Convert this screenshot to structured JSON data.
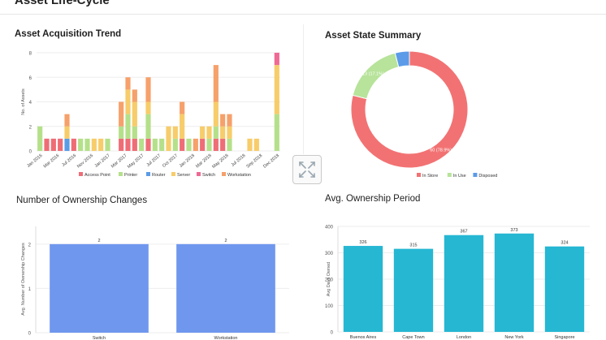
{
  "page": {
    "title": "Asset Life-Cycle"
  },
  "colors": {
    "access_point": "#ef6d76",
    "printer": "#b5e08a",
    "router": "#5b9ce6",
    "server": "#f7cc6a",
    "switch": "#ee6a95",
    "workstation": "#f6a06b",
    "in_store": "#f27273",
    "in_use": "#b7e39a",
    "disposed": "#5b9be8",
    "ownership_bar": "#6f97ee",
    "period_bar": "#26b7d3"
  },
  "widgets": {
    "acquisition": {
      "title": "Asset Acquisition Trend"
    },
    "state": {
      "title": "Asset State Summary"
    },
    "ownership_changes": {
      "title": "Number of Ownership Changes"
    },
    "ownership_period": {
      "title": "Avg. Ownership Period"
    }
  },
  "expand_icon": "expand-arrows-icon",
  "chart_data": [
    {
      "id": "acquisition",
      "type": "bar",
      "stacked": true,
      "title": "Asset Acquisition Trend",
      "ylabel": "No. of Assets",
      "ylim": [
        0,
        8
      ],
      "yticks": [
        0,
        2,
        4,
        6,
        8
      ],
      "x_tick_labels": [
        "Jan 2016",
        "Mar 2016",
        "Jul 2016",
        "Nov 2016",
        "Jan 2017",
        "Mar 2017",
        "May 2017",
        "Jul 2017",
        "Oct 2017",
        "Jan 2018",
        "Mar 2018",
        "May 2018",
        "Jul 2018",
        "Sep 2018",
        "Dec 2018"
      ],
      "categories": [
        "Jan 2016",
        "Feb 2016",
        "Mar 2016",
        "Apr 2016",
        "May 2016",
        "Jun 2016",
        "Jul 2016",
        "Aug 2016",
        "Sep 2016",
        "Oct 2016",
        "Nov 2016",
        "Dec 2016",
        "Jan 2017",
        "Feb 2017",
        "Mar 2017",
        "Apr 2017",
        "May 2017",
        "Jun 2017",
        "Jul 2017",
        "Aug 2017",
        "Sep 2017",
        "Oct 2017",
        "Nov 2017",
        "Dec 2017",
        "Jan 2018",
        "Feb 2018",
        "Mar 2018",
        "Apr 2018",
        "May 2018",
        "Jun 2018",
        "Jul 2018",
        "Aug 2018",
        "Sep 2018",
        "Oct 2018",
        "Nov 2018",
        "Dec 2018"
      ],
      "legend_position": "bottom",
      "series": [
        {
          "name": "Access Point",
          "color_key": "access_point",
          "values": [
            0,
            1,
            1,
            1,
            0,
            1,
            0,
            0,
            0,
            0,
            0,
            0,
            1,
            1,
            1,
            0,
            1,
            0,
            0,
            0,
            0,
            1,
            0,
            0,
            1,
            0,
            1,
            1,
            0,
            0,
            0,
            0,
            0,
            0,
            0,
            0
          ]
        },
        {
          "name": "Printer",
          "color_key": "printer",
          "values": [
            2,
            0,
            0,
            0,
            0,
            0,
            1,
            1,
            0,
            0,
            1,
            0,
            1,
            2,
            1,
            1,
            2,
            1,
            1,
            0,
            1,
            0,
            1,
            0,
            0,
            1,
            1,
            0,
            1,
            0,
            0,
            0,
            0,
            0,
            0,
            3
          ]
        },
        {
          "name": "Router",
          "color_key": "router",
          "values": [
            0,
            0,
            0,
            0,
            1,
            0,
            0,
            0,
            0,
            0,
            0,
            0,
            0,
            0,
            0,
            0,
            0,
            0,
            0,
            0,
            0,
            0,
            0,
            0,
            0,
            0,
            0,
            0,
            0,
            0,
            0,
            0,
            0,
            0,
            0,
            0
          ]
        },
        {
          "name": "Server",
          "color_key": "server",
          "values": [
            0,
            0,
            0,
            0,
            1,
            0,
            0,
            0,
            1,
            1,
            0,
            0,
            0,
            2,
            2,
            0,
            1,
            0,
            0,
            2,
            1,
            2,
            0,
            0,
            1,
            1,
            2,
            1,
            1,
            0,
            0,
            1,
            1,
            0,
            0,
            4
          ]
        },
        {
          "name": "Switch",
          "color_key": "switch",
          "values": [
            0,
            0,
            0,
            0,
            0,
            0,
            0,
            0,
            0,
            0,
            0,
            0,
            0,
            0,
            0,
            0,
            0,
            0,
            0,
            0,
            0,
            0,
            0,
            0,
            0,
            0,
            0,
            0,
            0,
            0,
            0,
            0,
            0,
            0,
            0,
            1
          ]
        },
        {
          "name": "Workstation",
          "color_key": "workstation",
          "values": [
            0,
            0,
            0,
            0,
            1,
            0,
            0,
            0,
            0,
            0,
            0,
            0,
            2,
            1,
            1,
            0,
            2,
            0,
            0,
            0,
            0,
            1,
            0,
            1,
            0,
            0,
            3,
            1,
            1,
            0,
            0,
            0,
            0,
            0,
            0,
            0
          ]
        }
      ]
    },
    {
      "id": "state",
      "type": "pie",
      "donut": true,
      "title": "Asset State Summary",
      "legend_position": "bottom",
      "slices": [
        {
          "name": "In Store",
          "value": 60,
          "label": "60 (78.9%)",
          "color_key": "in_store"
        },
        {
          "name": "In Use",
          "value": 13,
          "label": "13 (17.1%)",
          "color_key": "in_use"
        },
        {
          "name": "Disposed",
          "value": 3,
          "label": "",
          "color_key": "disposed"
        }
      ]
    },
    {
      "id": "ownership_changes",
      "type": "bar",
      "title": "Number of Ownership Changes",
      "ylabel": "Avg. Number of Ownership Changes",
      "ylim": [
        0,
        2.4
      ],
      "yticks": [
        0,
        1,
        2
      ],
      "categories": [
        "Switch",
        "Workstation"
      ],
      "values": [
        2,
        2
      ],
      "data_labels": [
        "2",
        "2"
      ],
      "color_key": "ownership_bar"
    },
    {
      "id": "ownership_period",
      "type": "bar",
      "title": "Avg. Ownership Period",
      "ylabel": "Avg Days Owned",
      "ylim": [
        0,
        400
      ],
      "yticks": [
        0,
        100,
        200,
        300,
        400
      ],
      "categories": [
        "Buenos Aires",
        "Cape Town",
        "London",
        "New York",
        "Singapore"
      ],
      "values": [
        326,
        315,
        367,
        373,
        324
      ],
      "data_labels": [
        "326",
        "315",
        "367",
        "373",
        "324"
      ],
      "color_key": "period_bar"
    }
  ]
}
